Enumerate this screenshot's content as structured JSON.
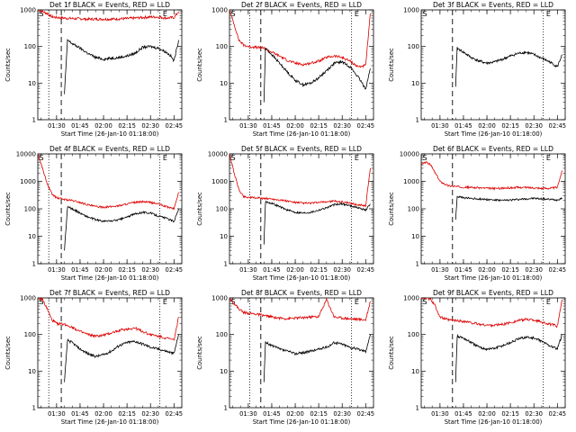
{
  "figure": {
    "xlabel_prefix": "Start Time (26-Jan-10 01:18:00)",
    "ylabel": "Counts/sec"
  },
  "chart_data": [
    {
      "type": "line",
      "title": "Det 1f BLACK = Events, RED = LLD",
      "xlabel": "Start Time (26-Jan-10 01:18:00)",
      "ylabel": "Counts/sec",
      "y_scale": "log",
      "ylim": [
        1,
        1000
      ],
      "x_ticks": [
        "01:30",
        "01:45",
        "02:00",
        "02:15",
        "02:30",
        "02:45"
      ],
      "y_ticks": [
        "1",
        "10",
        "100",
        "1000"
      ],
      "markers": {
        "S": "01:18",
        "E": "02:37"
      },
      "dotted_lines": [
        "01:25",
        "02:36"
      ],
      "dashed_line": "01:33",
      "series": [
        {
          "color": "#dd0000",
          "x": [
            "01:18",
            "01:21",
            "01:24",
            "01:27",
            "01:30",
            "01:35",
            "01:40",
            "01:45",
            "01:50",
            "01:55",
            "02:00",
            "02:05",
            "02:10",
            "02:15",
            "02:20",
            "02:25",
            "02:30",
            "02:35",
            "02:40",
            "02:45",
            "02:48"
          ],
          "y": [
            1000,
            900,
            800,
            650,
            620,
            600,
            580,
            570,
            560,
            560,
            560,
            560,
            570,
            580,
            600,
            620,
            640,
            640,
            600,
            620,
            900
          ]
        },
        {
          "color": "#000000",
          "x": [
            "01:35",
            "01:37",
            "01:40",
            "01:45",
            "01:50",
            "01:55",
            "02:00",
            "02:05",
            "02:10",
            "02:15",
            "02:20",
            "02:25",
            "02:30",
            "02:35",
            "02:40",
            "02:43",
            "02:45",
            "02:48"
          ],
          "y": [
            5,
            150,
            120,
            90,
            65,
            50,
            45,
            48,
            50,
            55,
            65,
            95,
            100,
            90,
            70,
            55,
            40,
            150
          ]
        }
      ]
    },
    {
      "type": "line",
      "title": "Det 2f BLACK = Events, RED = LLD",
      "xlabel": "Start Time (26-Jan-10 01:18:00)",
      "ylabel": "Counts/sec",
      "y_scale": "log",
      "ylim": [
        1,
        1000
      ],
      "x_ticks": [
        "01:30",
        "01:45",
        "02:00",
        "02:15",
        "02:30",
        "02:45"
      ],
      "y_ticks": [
        "1",
        "10",
        "100",
        "1000"
      ],
      "markers": {
        "S": "01:18",
        "E": "02:37"
      },
      "dotted_lines": [
        "01:31",
        "02:36"
      ],
      "dashed_line": "01:38",
      "series": [
        {
          "color": "#dd0000",
          "x": [
            "01:18",
            "01:21",
            "01:24",
            "01:27",
            "01:30",
            "01:35",
            "01:40",
            "01:45",
            "01:50",
            "01:55",
            "02:00",
            "02:05",
            "02:10",
            "02:15",
            "02:20",
            "02:25",
            "02:30",
            "02:35",
            "02:40",
            "02:45",
            "02:48"
          ],
          "y": [
            1000,
            400,
            150,
            110,
            100,
            95,
            90,
            70,
            55,
            42,
            35,
            32,
            35,
            40,
            50,
            55,
            50,
            40,
            28,
            30,
            800
          ]
        },
        {
          "color": "#000000",
          "x": [
            "01:40",
            "01:41",
            "01:45",
            "01:50",
            "01:55",
            "02:00",
            "02:05",
            "02:10",
            "02:15",
            "02:20",
            "02:25",
            "02:30",
            "02:35",
            "02:40",
            "02:45",
            "02:48"
          ],
          "y": [
            3,
            90,
            60,
            35,
            20,
            12,
            9,
            10,
            14,
            22,
            35,
            38,
            28,
            15,
            7,
            25
          ]
        }
      ]
    },
    {
      "type": "line",
      "title": "Det 3f BLACK = Events, RED = LLD",
      "xlabel": "Start Time (26-Jan-10 01:18:00)",
      "ylabel": "Counts/sec",
      "y_scale": "log",
      "ylim": [
        1,
        1000
      ],
      "x_ticks": [
        "01:30",
        "01:45",
        "02:00",
        "02:15",
        "02:30",
        "02:45"
      ],
      "y_ticks": [
        "1",
        "10",
        "100",
        "1000"
      ],
      "markers": {
        "S": "01:18",
        "E": "02:37"
      },
      "dotted_lines": [
        "02:36"
      ],
      "dashed_line": "01:38",
      "series": [
        {
          "color": "#000000",
          "x": [
            "01:40",
            "01:41",
            "01:45",
            "01:50",
            "01:55",
            "02:00",
            "02:05",
            "02:10",
            "02:15",
            "02:20",
            "02:25",
            "02:30",
            "02:35",
            "02:40",
            "02:45",
            "02:48"
          ],
          "y": [
            8,
            90,
            70,
            50,
            40,
            35,
            38,
            45,
            55,
            65,
            70,
            60,
            48,
            38,
            28,
            60
          ]
        }
      ]
    },
    {
      "type": "line",
      "title": "Det 4f BLACK = Events, RED = LLD",
      "xlabel": "Start Time (26-Jan-10 01:18:00)",
      "ylabel": "Counts/sec",
      "y_scale": "log",
      "ylim": [
        1,
        10000
      ],
      "x_ticks": [
        "01:30",
        "01:45",
        "02:00",
        "02:15",
        "02:30",
        "02:45"
      ],
      "y_ticks": [
        "1",
        "10",
        "100",
        "1000",
        "10000"
      ],
      "markers": {
        "S": "01:18",
        "E": "02:37"
      },
      "dotted_lines": [
        "01:25",
        "02:36"
      ],
      "dashed_line": "01:33",
      "series": [
        {
          "color": "#dd0000",
          "x": [
            "01:18",
            "01:21",
            "01:24",
            "01:27",
            "01:30",
            "01:35",
            "01:40",
            "01:45",
            "01:50",
            "01:55",
            "02:00",
            "02:05",
            "02:10",
            "02:15",
            "02:20",
            "02:25",
            "02:30",
            "02:35",
            "02:40",
            "02:45",
            "02:48"
          ],
          "y": [
            10000,
            3000,
            800,
            350,
            250,
            220,
            200,
            170,
            140,
            120,
            115,
            120,
            130,
            150,
            170,
            180,
            170,
            150,
            120,
            100,
            400
          ]
        },
        {
          "color": "#000000",
          "x": [
            "01:35",
            "01:37",
            "01:40",
            "01:45",
            "01:50",
            "01:55",
            "02:00",
            "02:05",
            "02:10",
            "02:15",
            "02:20",
            "02:25",
            "02:30",
            "02:35",
            "02:40",
            "02:45",
            "02:48"
          ],
          "y": [
            3,
            120,
            100,
            70,
            50,
            40,
            35,
            36,
            40,
            50,
            65,
            75,
            70,
            55,
            45,
            35,
            100
          ]
        }
      ]
    },
    {
      "type": "line",
      "title": "Det 5f BLACK = Events, RED = LLD",
      "xlabel": "Start Time (26-Jan-10 01:18:00)",
      "ylabel": "Counts/sec",
      "y_scale": "log",
      "ylim": [
        1,
        10000
      ],
      "x_ticks": [
        "01:30",
        "01:45",
        "02:00",
        "02:15",
        "02:30",
        "02:45"
      ],
      "y_ticks": [
        "1",
        "10",
        "100",
        "1000",
        "10000"
      ],
      "markers": {
        "S": "01:18",
        "E": "02:37"
      },
      "dotted_lines": [
        "01:31",
        "02:36"
      ],
      "dashed_line": "01:38",
      "series": [
        {
          "color": "#dd0000",
          "x": [
            "01:18",
            "01:21",
            "01:24",
            "01:27",
            "01:30",
            "01:35",
            "01:40",
            "01:45",
            "01:50",
            "01:55",
            "02:00",
            "02:05",
            "02:10",
            "02:15",
            "02:20",
            "02:25",
            "02:30",
            "02:35",
            "02:40",
            "02:45",
            "02:48"
          ],
          "y": [
            10000,
            2000,
            500,
            280,
            260,
            250,
            240,
            230,
            210,
            190,
            170,
            160,
            160,
            170,
            180,
            190,
            180,
            160,
            140,
            130,
            3000
          ]
        },
        {
          "color": "#000000",
          "x": [
            "01:40",
            "01:41",
            "01:45",
            "01:50",
            "01:55",
            "02:00",
            "02:05",
            "02:10",
            "02:15",
            "02:20",
            "02:25",
            "02:30",
            "02:35",
            "02:40",
            "02:45",
            "02:48"
          ],
          "y": [
            5,
            180,
            160,
            120,
            90,
            75,
            70,
            75,
            90,
            110,
            140,
            150,
            130,
            110,
            90,
            150
          ]
        }
      ]
    },
    {
      "type": "line",
      "title": "Det 6f BLACK = Events, RED = LLD",
      "xlabel": "Start Time (26-Jan-10 01:18:00)",
      "ylabel": "Counts/sec",
      "y_scale": "log",
      "ylim": [
        1,
        10000
      ],
      "x_ticks": [
        "01:30",
        "01:45",
        "02:00",
        "02:15",
        "02:30",
        "02:45"
      ],
      "y_ticks": [
        "1",
        "10",
        "100",
        "1000",
        "10000"
      ],
      "markers": {
        "S": "01:18",
        "E": "02:37"
      },
      "dotted_lines": [
        "02:36"
      ],
      "dashed_line": "01:38",
      "series": [
        {
          "color": "#dd0000",
          "x": [
            "01:18",
            "01:21",
            "01:24",
            "01:27",
            "01:30",
            "01:35",
            "01:40",
            "01:45",
            "01:50",
            "01:55",
            "02:00",
            "02:05",
            "02:10",
            "02:15",
            "02:20",
            "02:25",
            "02:30",
            "02:35",
            "02:40",
            "02:45",
            "02:48"
          ],
          "y": [
            4000,
            5000,
            4000,
            2000,
            1000,
            700,
            650,
            620,
            600,
            580,
            560,
            550,
            560,
            580,
            600,
            600,
            580,
            560,
            560,
            600,
            2500
          ]
        },
        {
          "color": "#000000",
          "x": [
            "01:40",
            "01:41",
            "01:45",
            "01:50",
            "01:55",
            "02:00",
            "02:05",
            "02:10",
            "02:15",
            "02:20",
            "02:25",
            "02:30",
            "02:35",
            "02:40",
            "02:45",
            "02:48"
          ],
          "y": [
            40,
            280,
            250,
            240,
            230,
            220,
            210,
            200,
            210,
            220,
            230,
            240,
            230,
            220,
            210,
            250
          ]
        }
      ]
    },
    {
      "type": "line",
      "title": "Det 7f BLACK = Events, RED = LLD",
      "xlabel": "Start Time (26-Jan-10 01:18:00)",
      "ylabel": "Counts/sec",
      "y_scale": "log",
      "ylim": [
        1,
        1000
      ],
      "x_ticks": [
        "01:30",
        "01:45",
        "02:00",
        "02:15",
        "02:30",
        "02:45"
      ],
      "y_ticks": [
        "1",
        "10",
        "100",
        "1000"
      ],
      "markers": {
        "S": "01:18",
        "E": "02:37"
      },
      "dotted_lines": [
        "01:25",
        "02:36"
      ],
      "dashed_line": "01:33",
      "series": [
        {
          "color": "#dd0000",
          "x": [
            "01:18",
            "01:21",
            "01:24",
            "01:27",
            "01:30",
            "01:35",
            "01:40",
            "01:45",
            "01:50",
            "01:55",
            "02:00",
            "02:05",
            "02:10",
            "02:15",
            "02:20",
            "02:25",
            "02:30",
            "02:35",
            "02:40",
            "02:45",
            "02:48"
          ],
          "y": [
            1000,
            900,
            500,
            250,
            200,
            190,
            160,
            120,
            100,
            90,
            95,
            110,
            130,
            140,
            150,
            120,
            100,
            90,
            80,
            70,
            300
          ]
        },
        {
          "color": "#000000",
          "x": [
            "01:35",
            "01:37",
            "01:40",
            "01:45",
            "01:50",
            "01:55",
            "02:00",
            "02:05",
            "02:10",
            "02:15",
            "02:20",
            "02:25",
            "02:30",
            "02:35",
            "02:40",
            "02:45",
            "02:48"
          ],
          "y": [
            5,
            70,
            60,
            40,
            30,
            25,
            28,
            35,
            50,
            60,
            65,
            55,
            45,
            40,
            35,
            30,
            100
          ]
        }
      ]
    },
    {
      "type": "line",
      "title": "Det 8f BLACK = Events, RED = LLD",
      "xlabel": "Start Time (26-Jan-10 01:18:00)",
      "ylabel": "Counts/sec",
      "y_scale": "log",
      "ylim": [
        1,
        1000
      ],
      "x_ticks": [
        "01:30",
        "01:45",
        "02:00",
        "02:15",
        "02:30",
        "02:45"
      ],
      "y_ticks": [
        "1",
        "10",
        "100",
        "1000"
      ],
      "markers": {
        "S": "01:18",
        "E": "02:37"
      },
      "dotted_lines": [
        "01:31",
        "02:36"
      ],
      "dashed_line": "01:38",
      "series": [
        {
          "color": "#dd0000",
          "x": [
            "01:18",
            "01:21",
            "01:24",
            "01:27",
            "01:30",
            "01:35",
            "01:40",
            "01:45",
            "01:50",
            "01:55",
            "02:00",
            "02:05",
            "02:10",
            "02:15",
            "02:20",
            "02:25",
            "02:30",
            "02:35",
            "02:40",
            "02:45",
            "02:48"
          ],
          "y": [
            1000,
            700,
            500,
            400,
            380,
            360,
            330,
            300,
            280,
            270,
            280,
            290,
            300,
            310,
            900,
            300,
            280,
            270,
            260,
            250,
            800
          ]
        },
        {
          "color": "#000000",
          "x": [
            "01:40",
            "01:41",
            "01:45",
            "01:50",
            "01:55",
            "02:00",
            "02:05",
            "02:10",
            "02:15",
            "02:20",
            "02:25",
            "02:30",
            "02:35",
            "02:40",
            "02:45",
            "02:48"
          ],
          "y": [
            5,
            60,
            50,
            40,
            35,
            30,
            32,
            35,
            40,
            45,
            60,
            55,
            45,
            40,
            35,
            100
          ]
        }
      ]
    },
    {
      "type": "line",
      "title": "Det 9f BLACK = Events, RED = LLD",
      "xlabel": "Start Time (26-Jan-10 01:18:00)",
      "ylabel": "Counts/sec",
      "y_scale": "log",
      "ylim": [
        1,
        1000
      ],
      "x_ticks": [
        "01:30",
        "01:45",
        "02:00",
        "02:15",
        "02:30",
        "02:45"
      ],
      "y_ticks": [
        "1",
        "10",
        "100",
        "1000"
      ],
      "markers": {
        "S": "01:18",
        "E": "02:37"
      },
      "dotted_lines": [
        "02:36"
      ],
      "dashed_line": "01:38",
      "series": [
        {
          "color": "#dd0000",
          "x": [
            "01:18",
            "01:21",
            "01:24",
            "01:27",
            "01:30",
            "01:35",
            "01:40",
            "01:45",
            "01:50",
            "01:55",
            "02:00",
            "02:05",
            "02:10",
            "02:15",
            "02:20",
            "02:25",
            "02:30",
            "02:35",
            "02:40",
            "02:45",
            "02:48"
          ],
          "y": [
            1000,
            1000,
            900,
            600,
            300,
            250,
            240,
            230,
            210,
            190,
            180,
            180,
            190,
            210,
            240,
            260,
            250,
            220,
            190,
            170,
            900
          ]
        },
        {
          "color": "#000000",
          "x": [
            "01:40",
            "01:41",
            "01:45",
            "01:50",
            "01:55",
            "02:00",
            "02:05",
            "02:10",
            "02:15",
            "02:20",
            "02:25",
            "02:30",
            "02:35",
            "02:40",
            "02:45",
            "02:48"
          ],
          "y": [
            5,
            90,
            80,
            60,
            45,
            40,
            42,
            50,
            60,
            75,
            85,
            80,
            65,
            50,
            40,
            100
          ]
        }
      ]
    }
  ]
}
